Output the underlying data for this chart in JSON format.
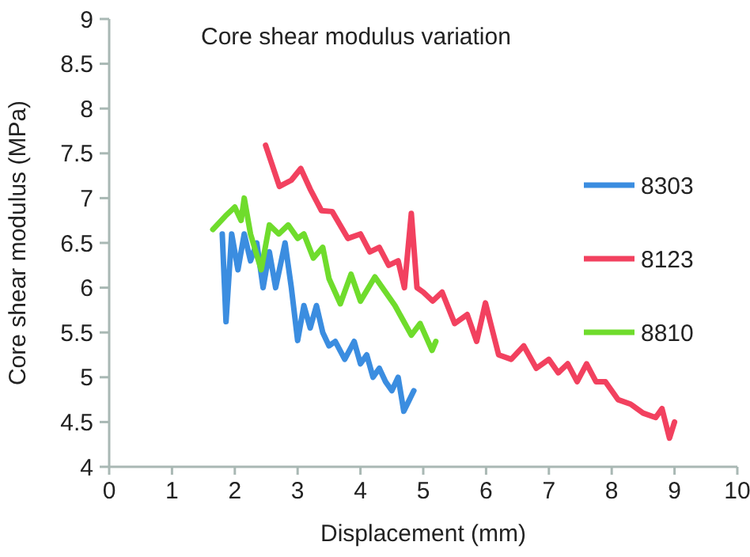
{
  "chart_data": {
    "type": "line",
    "title": "Core shear modulus variation",
    "xlabel": "Displacement (mm)",
    "ylabel": "Core shear modulus (MPa)",
    "xlim": [
      0,
      10
    ],
    "xticks": [
      0,
      1,
      2,
      3,
      4,
      5,
      6,
      7,
      8,
      9,
      10
    ],
    "ylim": [
      4,
      9
    ],
    "yticks": [
      4,
      4.5,
      5,
      5.5,
      6,
      6.5,
      7,
      7.5,
      8,
      8.5,
      9
    ],
    "grid": false,
    "legend": "right",
    "marker": "none",
    "line_style": "solid",
    "series": [
      {
        "name": "8303",
        "color": "#3b8de0",
        "x": [
          1.8,
          1.86,
          1.95,
          2.05,
          2.15,
          2.25,
          2.35,
          2.45,
          2.55,
          2.65,
          2.8,
          2.9,
          3.0,
          3.1,
          3.2,
          3.3,
          3.4,
          3.5,
          3.6,
          3.75,
          3.9,
          4.0,
          4.1,
          4.2,
          4.3,
          4.4,
          4.5,
          4.6,
          4.69,
          4.85
        ],
        "values": [
          6.6,
          5.62,
          6.6,
          6.2,
          6.6,
          6.3,
          6.5,
          6.0,
          6.4,
          6.0,
          6.5,
          6.0,
          5.41,
          5.8,
          5.55,
          5.8,
          5.5,
          5.35,
          5.4,
          5.2,
          5.4,
          5.15,
          5.25,
          5.0,
          5.1,
          4.95,
          4.85,
          5.0,
          4.62,
          4.85
        ]
      },
      {
        "name": "8123",
        "color": "#f2415f",
        "x": [
          2.49,
          2.71,
          2.9,
          3.05,
          3.2,
          3.38,
          3.55,
          3.8,
          4.0,
          4.15,
          4.3,
          4.45,
          4.6,
          4.7,
          4.81,
          4.9,
          5.0,
          5.15,
          5.3,
          5.5,
          5.7,
          5.85,
          5.99,
          6.2,
          6.4,
          6.6,
          6.8,
          7.0,
          7.15,
          7.3,
          7.45,
          7.6,
          7.75,
          7.9,
          8.1,
          8.3,
          8.5,
          8.7,
          8.8,
          8.92,
          9.0
        ],
        "values": [
          7.59,
          7.13,
          7.2,
          7.33,
          7.1,
          6.86,
          6.85,
          6.55,
          6.6,
          6.4,
          6.45,
          6.25,
          6.3,
          6.0,
          6.83,
          6.0,
          5.95,
          5.85,
          5.95,
          5.6,
          5.7,
          5.4,
          5.83,
          5.25,
          5.2,
          5.35,
          5.1,
          5.2,
          5.05,
          5.15,
          4.95,
          5.15,
          4.95,
          4.95,
          4.75,
          4.7,
          4.6,
          4.55,
          4.65,
          4.32,
          4.5
        ]
      },
      {
        "name": "8810",
        "color": "#6fdc2c",
        "x": [
          1.65,
          1.85,
          2.0,
          2.1,
          2.15,
          2.25,
          2.42,
          2.55,
          2.7,
          2.85,
          3.0,
          3.1,
          3.25,
          3.4,
          3.5,
          3.68,
          3.85,
          4.0,
          4.23,
          4.4,
          4.55,
          4.81,
          4.95,
          5.14,
          5.2
        ],
        "values": [
          6.65,
          6.8,
          6.9,
          6.75,
          7.0,
          6.6,
          6.2,
          6.7,
          6.6,
          6.7,
          6.55,
          6.6,
          6.33,
          6.45,
          6.1,
          5.82,
          6.15,
          5.85,
          6.12,
          5.95,
          5.8,
          5.47,
          5.6,
          5.3,
          5.4
        ]
      }
    ]
  }
}
